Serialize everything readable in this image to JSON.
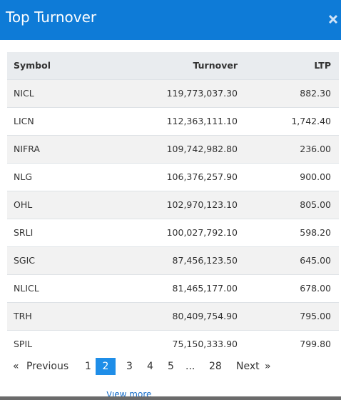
{
  "header": {
    "title": "Top Turnover"
  },
  "table": {
    "columns": [
      "Symbol",
      "Turnover",
      "LTP"
    ],
    "rows": [
      [
        "NICL",
        "119,773,037.30",
        "882.30"
      ],
      [
        "LICN",
        "112,363,111.10",
        "1,742.40"
      ],
      [
        "NIFRA",
        "109,742,982.80",
        "236.00"
      ],
      [
        "NLG",
        "106,376,257.90",
        "900.00"
      ],
      [
        "OHL",
        "102,970,123.10",
        "805.00"
      ],
      [
        "SRLI",
        "100,027,792.10",
        "598.20"
      ],
      [
        "SGIC",
        "87,456,123.50",
        "645.00"
      ],
      [
        "NLICL",
        "81,465,177.00",
        "678.00"
      ],
      [
        "TRH",
        "80,409,754.90",
        "795.00"
      ],
      [
        "SPIL",
        "75,150,333.90",
        "799.80"
      ]
    ]
  },
  "pagination": {
    "first": "«",
    "previous": "Previous",
    "pages": [
      "1",
      "2",
      "3",
      "4",
      "5",
      "...",
      "28"
    ],
    "active": 1,
    "next": "Next",
    "last": "»"
  },
  "footer": {
    "link": "View more"
  }
}
